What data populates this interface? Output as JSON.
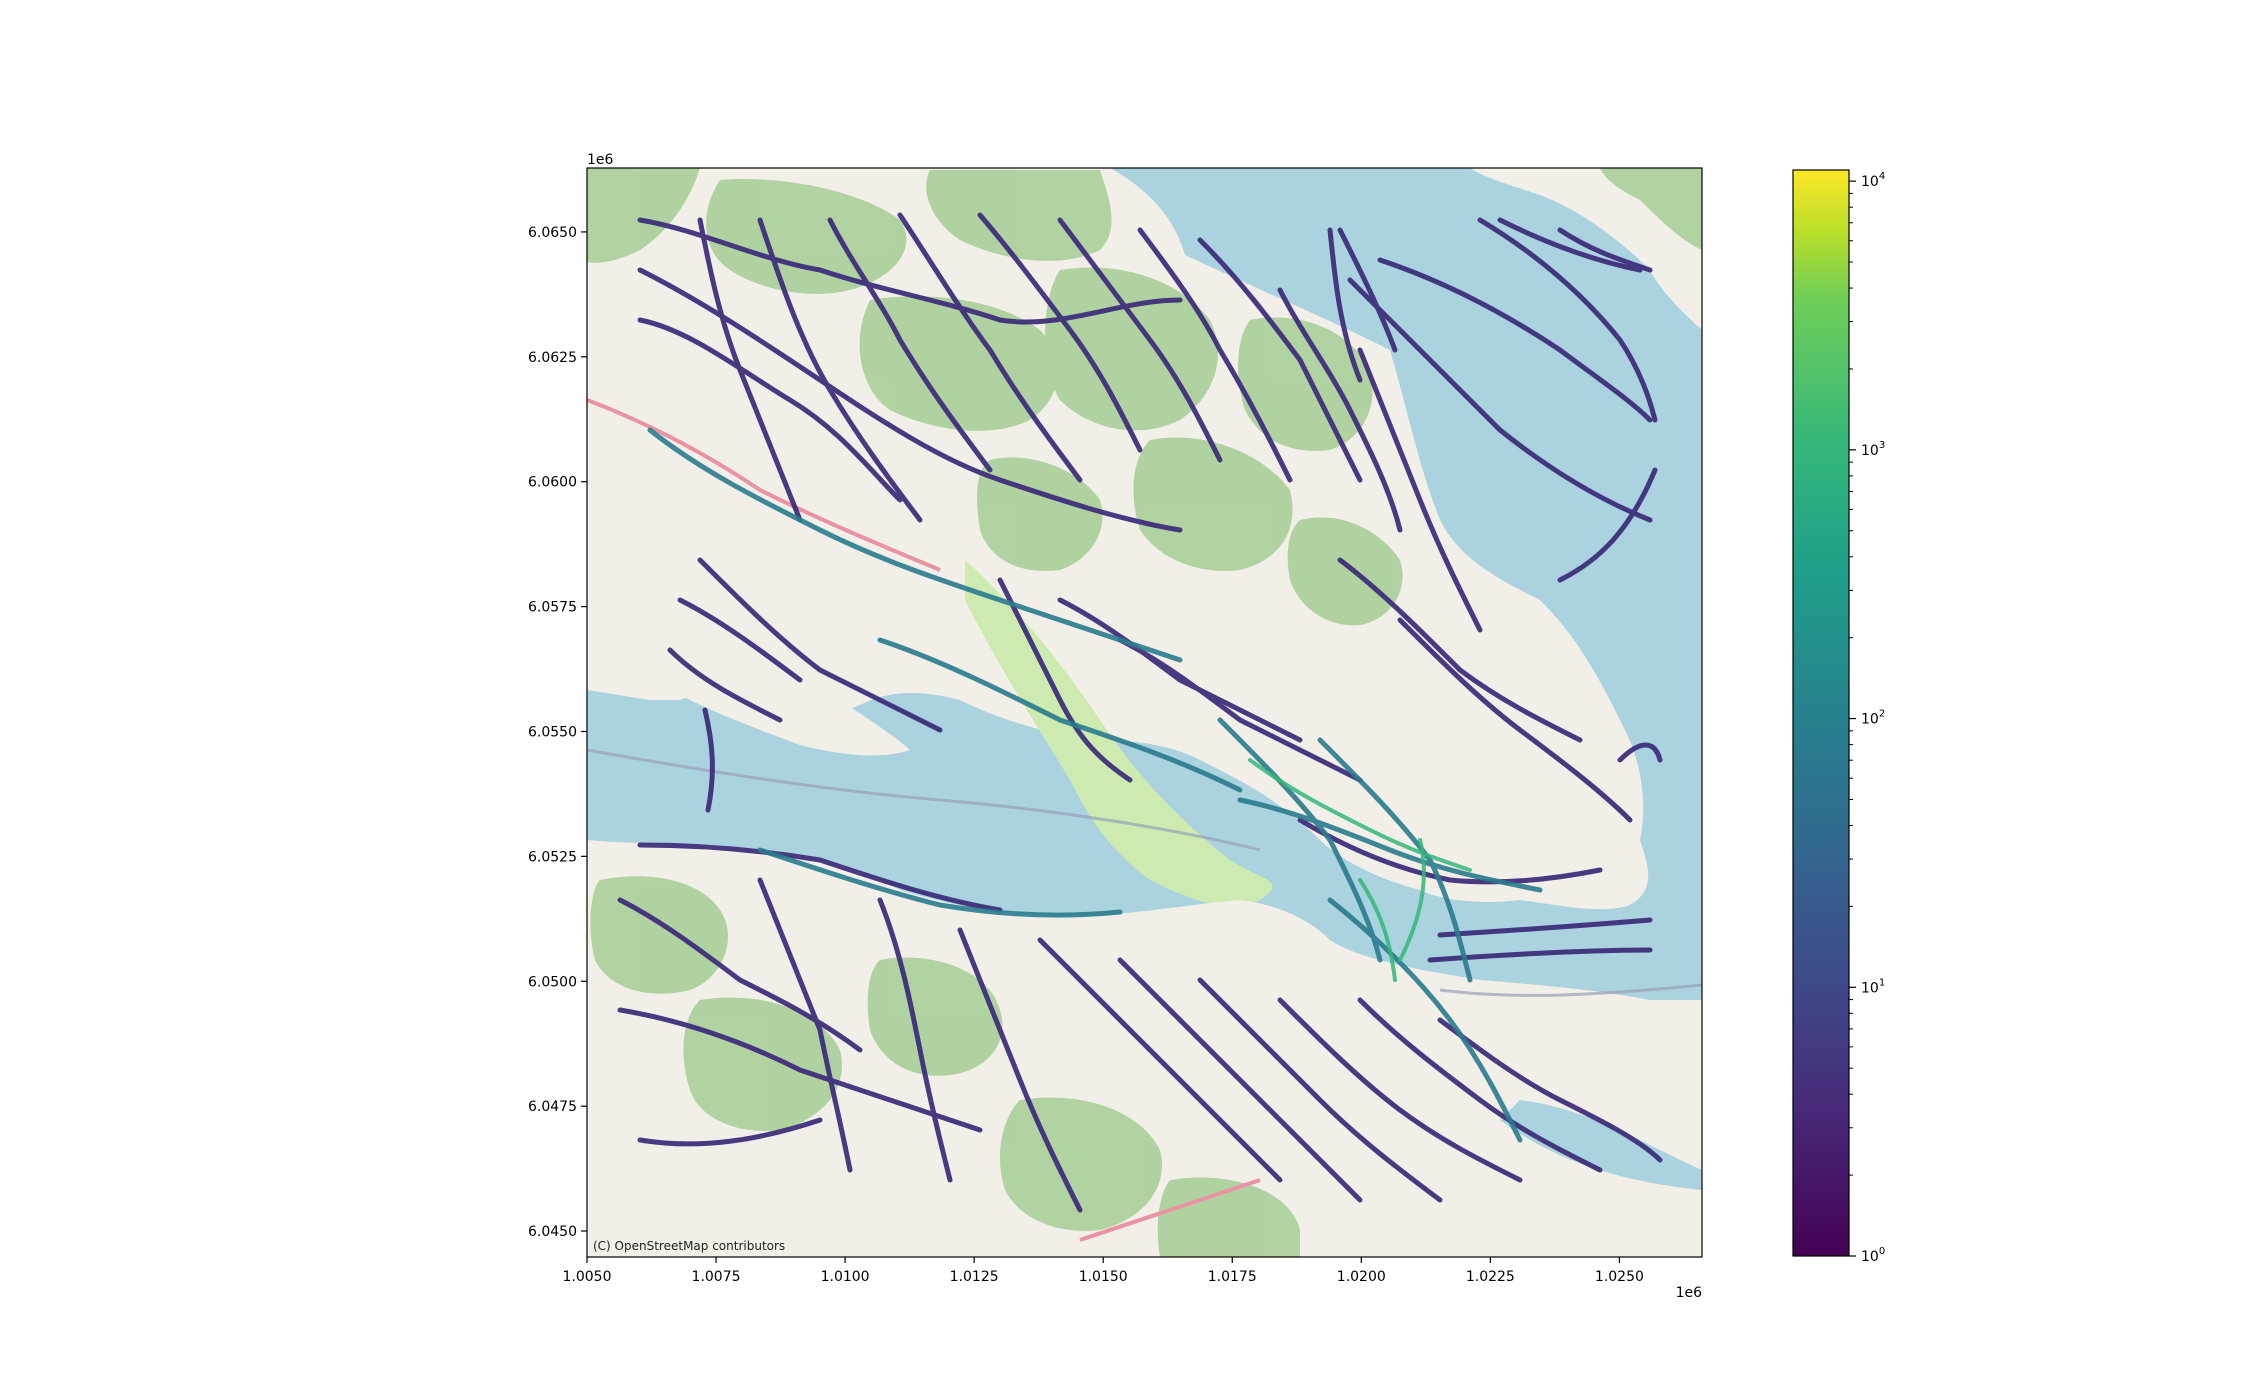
{
  "figure": {
    "attribution": "(C) OpenStreetMap contributors",
    "x_offset": "1e6",
    "y_offset": "1e6"
  },
  "chart_data": {
    "type": "scatter",
    "basemap": "OpenStreetMap",
    "xlim": [
      1.005,
      1.0266
    ],
    "ylim": [
      6.04448,
      6.06628
    ],
    "x_ticks": [
      "1.0050",
      "1.0075",
      "1.0100",
      "1.0125",
      "1.0150",
      "1.0175",
      "1.0200",
      "1.0225",
      "1.0250"
    ],
    "x_tick_values": [
      1.005,
      1.0075,
      1.01,
      1.0125,
      1.015,
      1.0175,
      1.02,
      1.0225,
      1.025
    ],
    "y_ticks": [
      "6.0650",
      "6.0625",
      "6.0600",
      "6.0575",
      "6.0550",
      "6.0525",
      "6.0500",
      "6.0475",
      "6.0450"
    ],
    "y_tick_values": [
      6.065,
      6.0625,
      6.06,
      6.0575,
      6.055,
      6.0525,
      6.05,
      6.0475,
      6.045
    ],
    "colorbar": {
      "scale": "log",
      "range": [
        1,
        11000
      ],
      "colormap": "viridis",
      "ticks": [
        {
          "base": "10",
          "exp": "0",
          "value": 1
        },
        {
          "base": "10",
          "exp": "1",
          "value": 10
        },
        {
          "base": "10",
          "exp": "2",
          "value": 100
        },
        {
          "base": "10",
          "exp": "3",
          "value": 1000
        },
        {
          "base": "10",
          "exp": "4",
          "value": 10000
        }
      ]
    },
    "colors": {
      "water": "#aad3df",
      "land": "#f2efe9",
      "forest": "#add19e",
      "track_low": "#440154",
      "track_mid": "#31688e",
      "track_high": "#35b779"
    }
  }
}
